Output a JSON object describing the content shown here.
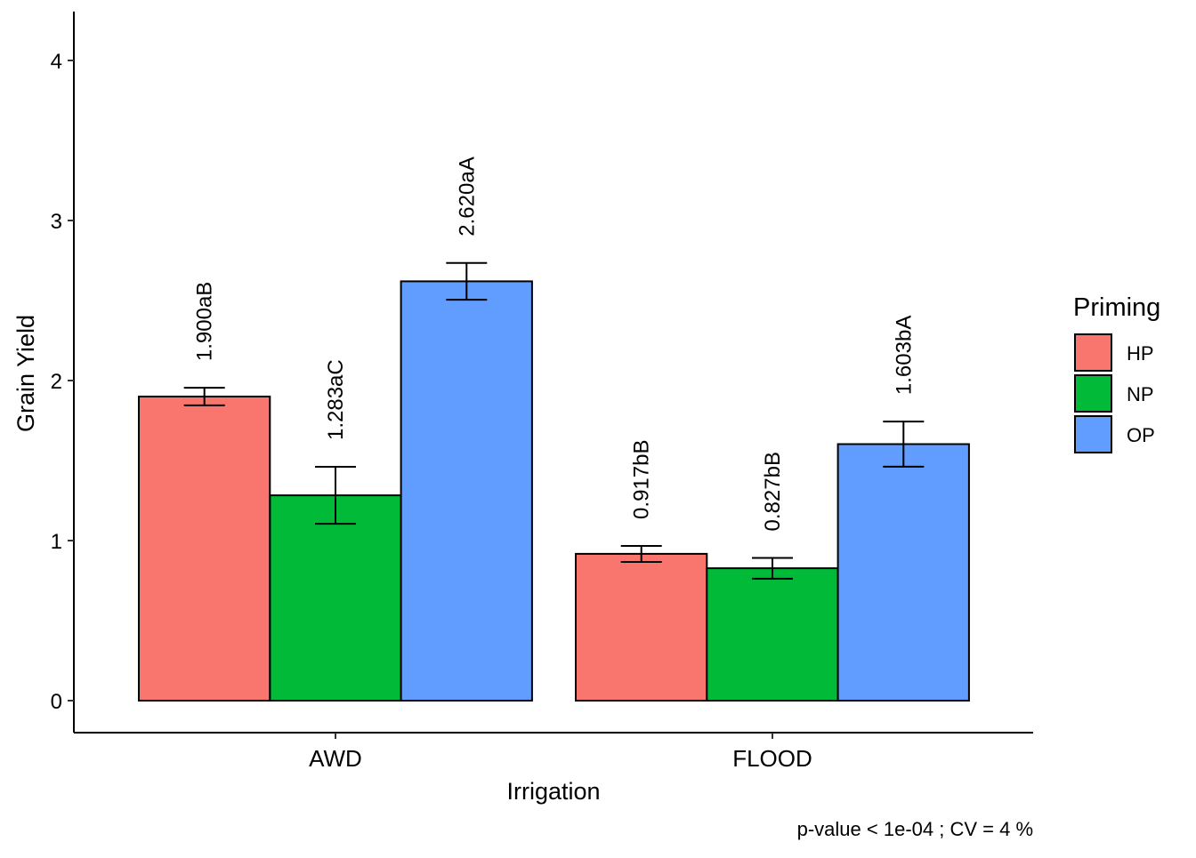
{
  "chart_data": {
    "type": "bar",
    "title": "",
    "xlabel": "Irrigation",
    "ylabel": "Grain Yield",
    "categories": [
      "AWD",
      "FLOOD"
    ],
    "ylim": [
      -0.2,
      4.3
    ],
    "yticks": [
      0,
      1,
      2,
      3,
      4
    ],
    "grid": false,
    "legend": {
      "title": "Priming",
      "placement": "right"
    },
    "series": [
      {
        "name": "HP",
        "color": "#F8766D",
        "values": [
          1.9,
          0.917
        ],
        "err_low": [
          1.845,
          0.867
        ],
        "err_high": [
          1.955,
          0.967
        ],
        "labels": [
          "1.900aB",
          "0.917bB"
        ]
      },
      {
        "name": "NP",
        "color": "#00BA38",
        "values": [
          1.283,
          0.827
        ],
        "err_low": [
          1.105,
          0.762
        ],
        "err_high": [
          1.461,
          0.892
        ],
        "labels": [
          "1.283aC",
          "0.827bB"
        ]
      },
      {
        "name": "OP",
        "color": "#619CFF",
        "values": [
          2.62,
          1.603
        ],
        "err_low": [
          2.505,
          1.462
        ],
        "err_high": [
          2.735,
          1.744
        ],
        "labels": [
          "2.620aA",
          "1.603bA"
        ]
      }
    ],
    "caption": "p-value  < 1e-04 ; CV =  4 %"
  }
}
